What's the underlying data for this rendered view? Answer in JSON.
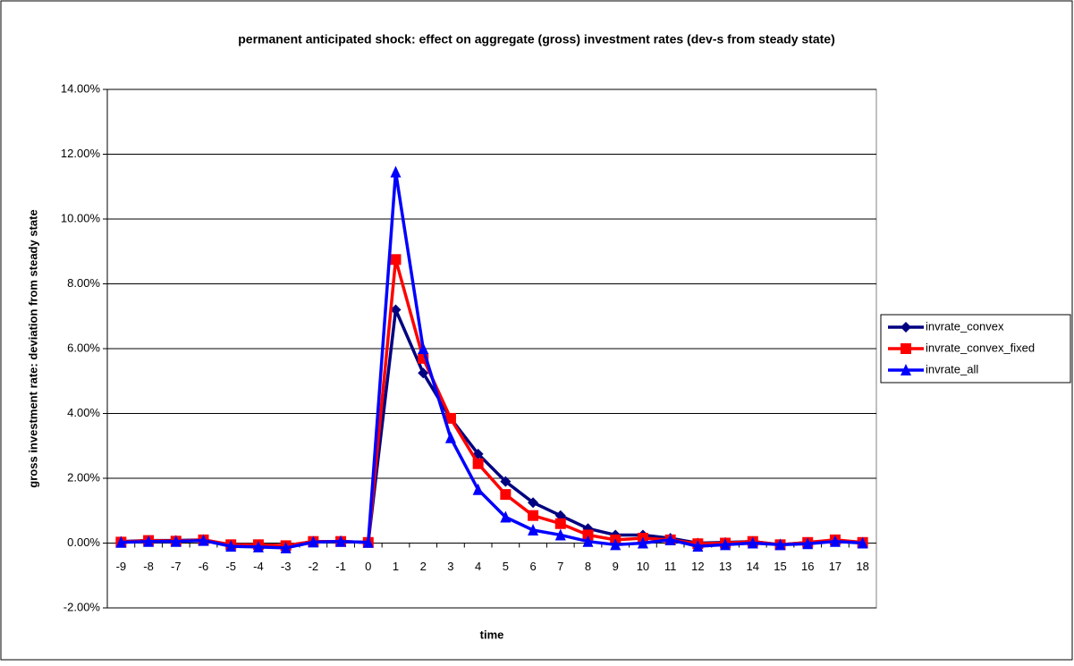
{
  "chart_data": {
    "type": "line",
    "title": "permanent anticipated shock: effect on aggregate (gross) investment rates (dev-s from steady state)",
    "x_label": "time",
    "y_label": "gross investment rate: deviation from steady state",
    "categories": [
      "-9",
      "-8",
      "-7",
      "-6",
      "-5",
      "-4",
      "-3",
      "-2",
      "-1",
      "0",
      "1",
      "2",
      "3",
      "4",
      "5",
      "6",
      "7",
      "8",
      "9",
      "10",
      "11",
      "12",
      "13",
      "14",
      "15",
      "16",
      "17",
      "18"
    ],
    "series": [
      {
        "name": "invrate_convex",
        "color": "#000080",
        "marker": "diamond",
        "values": [
          0.05,
          0.08,
          0.08,
          0.1,
          -0.05,
          -0.05,
          -0.08,
          0.05,
          0.05,
          0.02,
          7.2,
          5.25,
          3.85,
          2.75,
          1.9,
          1.25,
          0.85,
          0.45,
          0.25,
          0.25,
          0.15,
          0.0,
          0.02,
          0.05,
          -0.05,
          0.02,
          0.08,
          0.02
        ]
      },
      {
        "name": "invrate_convex_fixed",
        "color": "#ff0000",
        "marker": "square",
        "values": [
          0.03,
          0.08,
          0.06,
          0.1,
          -0.05,
          -0.05,
          -0.08,
          0.05,
          0.05,
          0.02,
          8.75,
          5.7,
          3.85,
          2.45,
          1.5,
          0.85,
          0.6,
          0.25,
          0.1,
          0.15,
          0.1,
          -0.02,
          0.0,
          0.05,
          -0.05,
          0.02,
          0.1,
          0.02
        ]
      },
      {
        "name": "invrate_all",
        "color": "#0000ff",
        "marker": "triangle",
        "values": [
          0.02,
          0.05,
          0.05,
          0.08,
          -0.1,
          -0.12,
          -0.15,
          0.03,
          0.05,
          0.02,
          11.45,
          6.0,
          3.25,
          1.65,
          0.8,
          0.4,
          0.25,
          0.05,
          -0.05,
          0.0,
          0.1,
          -0.1,
          -0.05,
          0.0,
          -0.05,
          -0.02,
          0.05,
          0.0
        ]
      }
    ],
    "ylim": [
      -2,
      14
    ],
    "yticks": [
      {
        "value": -2,
        "label": "-2.00%"
      },
      {
        "value": 0,
        "label": "0.00%"
      },
      {
        "value": 2,
        "label": "2.00%"
      },
      {
        "value": 4,
        "label": "4.00%"
      },
      {
        "value": 6,
        "label": "6.00%"
      },
      {
        "value": 8,
        "label": "8.00%"
      },
      {
        "value": 10,
        "label": "10.00%"
      },
      {
        "value": 12,
        "label": "12.00%"
      },
      {
        "value": 14,
        "label": "14.00%"
      }
    ],
    "grid": true,
    "legend": "right"
  }
}
